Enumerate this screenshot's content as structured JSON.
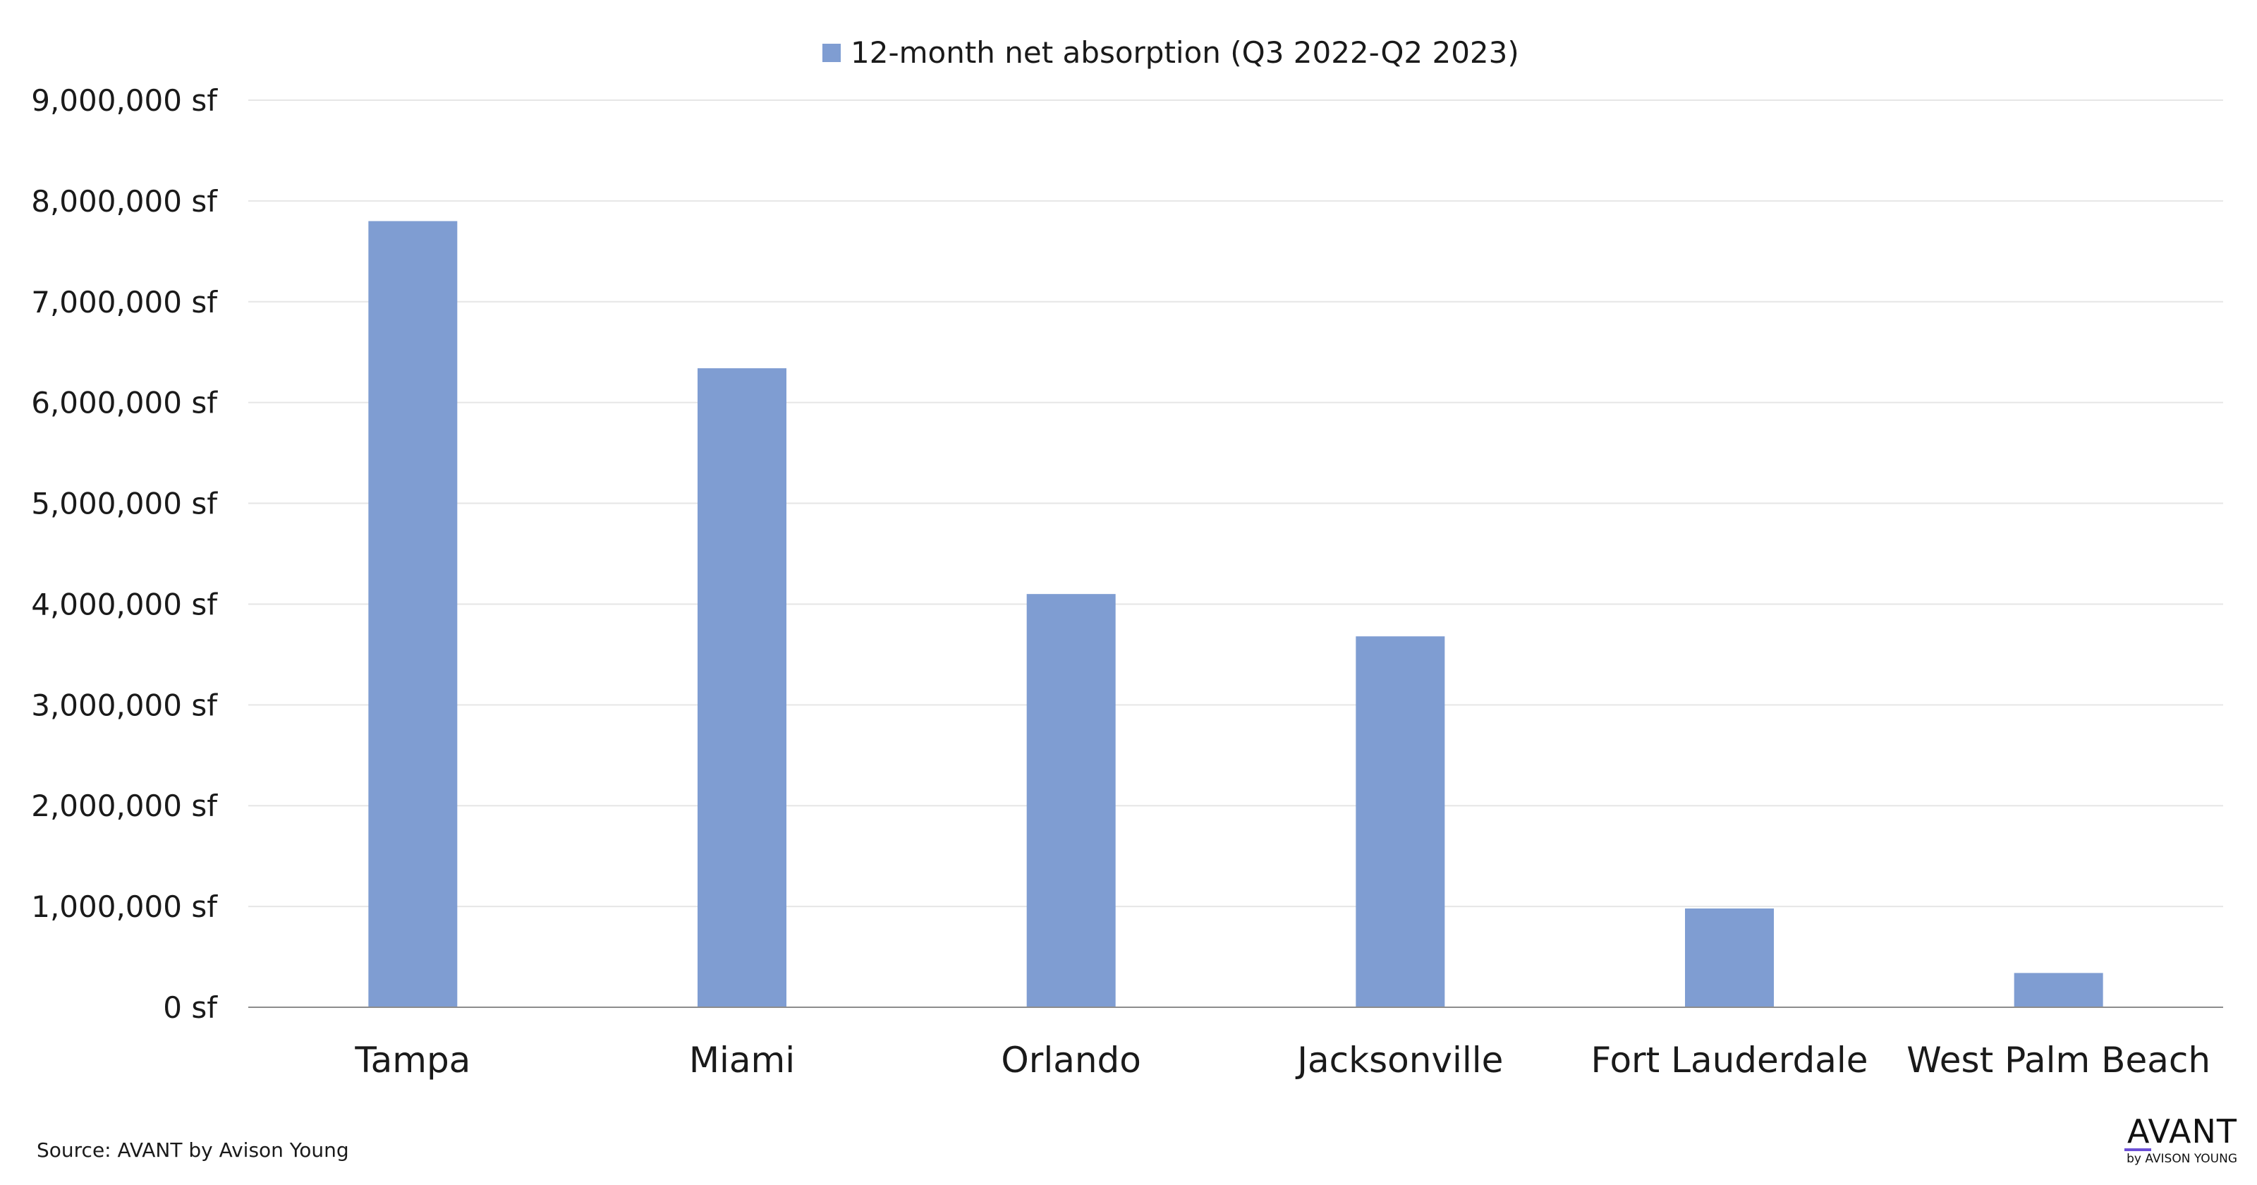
{
  "chart_data": {
    "type": "bar",
    "title": "",
    "xlabel": "",
    "ylabel": "",
    "categories": [
      "Tampa",
      "Miami",
      "Orlando",
      "Jacksonville",
      "Fort Lauderdale",
      "West Palm Beach"
    ],
    "series": [
      {
        "name": "12-month net absorption (Q3 2022-Q2 2023)",
        "values": [
          7800000,
          6340000,
          4100000,
          3680000,
          980000,
          340000
        ],
        "color": "#7f9dd2"
      }
    ],
    "ylim": [
      0,
      9000000
    ],
    "yticks": [
      0,
      1000000,
      2000000,
      3000000,
      4000000,
      5000000,
      6000000,
      7000000,
      8000000,
      9000000
    ],
    "ytick_labels": [
      "0 sf",
      "1,000,000 sf",
      "2,000,000 sf",
      "3,000,000 sf",
      "4,000,000 sf",
      "5,000,000 sf",
      "6,000,000 sf",
      "7,000,000 sf",
      "8,000,000 sf",
      "9,000,000 sf"
    ],
    "grid": true,
    "legend": "top-center"
  },
  "source_text": "Source: AVANT by Avison Young",
  "logo": {
    "main": "AVANT",
    "sub": "by AVISON YOUNG",
    "accent_color": "#6b4fd6"
  },
  "colors": {
    "bar": "#7f9dd2",
    "grid": "#e6e6e6",
    "axis": "#8c8c8c",
    "text": "#1a1a1a"
  }
}
